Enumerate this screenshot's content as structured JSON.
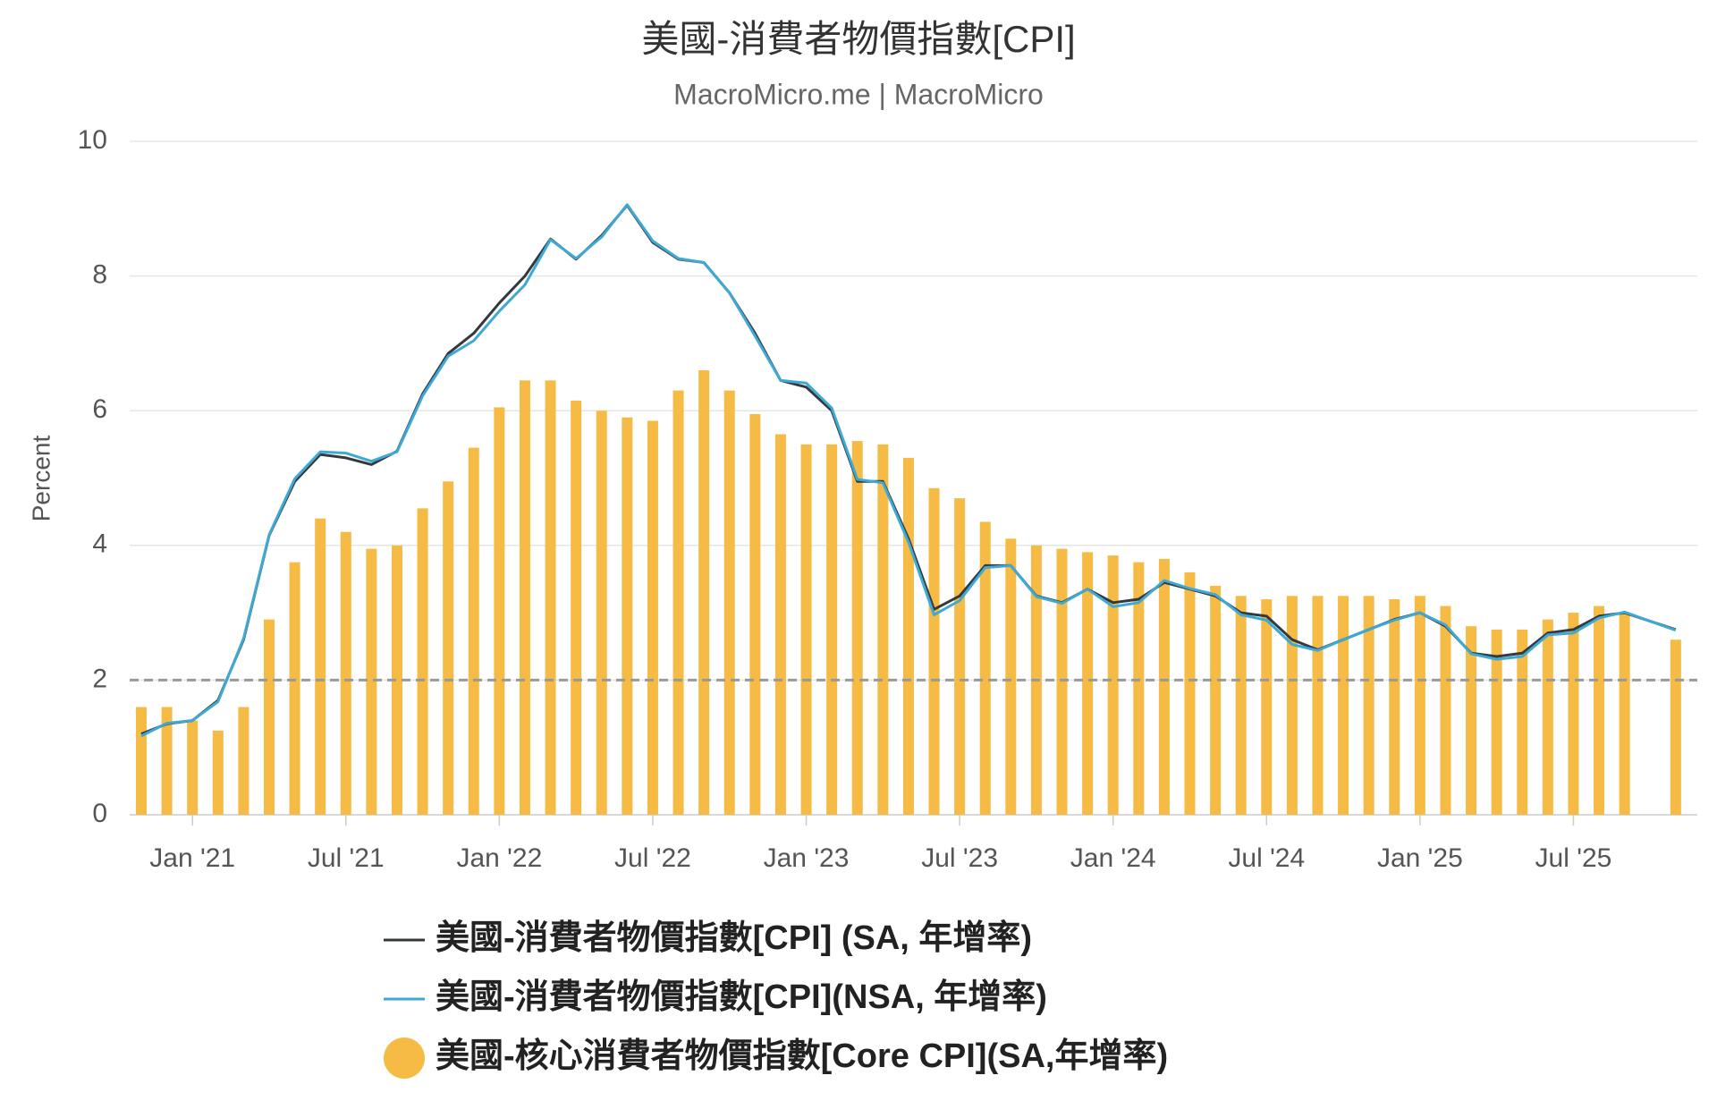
{
  "chart_data": {
    "type": "bar-line",
    "title": "美國-消費者物價指數[CPI]",
    "subtitle": "MacroMicro.me | MacroMicro",
    "y_label": "Percent",
    "x": [
      "2020-11",
      "2020-12",
      "2021-01",
      "2021-02",
      "2021-03",
      "2021-04",
      "2021-05",
      "2021-06",
      "2021-07",
      "2021-08",
      "2021-09",
      "2021-10",
      "2021-11",
      "2021-12",
      "2022-01",
      "2022-02",
      "2022-03",
      "2022-04",
      "2022-05",
      "2022-06",
      "2022-07",
      "2022-08",
      "2022-09",
      "2022-10",
      "2022-11",
      "2022-12",
      "2023-01",
      "2023-02",
      "2023-03",
      "2023-04",
      "2023-05",
      "2023-06",
      "2023-07",
      "2023-08",
      "2023-09",
      "2023-10",
      "2023-11",
      "2023-12",
      "2024-01",
      "2024-02",
      "2024-03",
      "2024-04",
      "2024-05",
      "2024-06",
      "2024-07",
      "2024-08",
      "2024-09",
      "2024-10",
      "2024-11",
      "2024-12",
      "2025-01",
      "2025-02",
      "2025-03",
      "2025-04",
      "2025-05",
      "2025-06",
      "2025-07",
      "2025-08",
      "2025-09",
      "2025-11"
    ],
    "series": [
      {
        "name": "美國-消費者物價指數[CPI] (SA, 年增率)",
        "kind": "line",
        "color": "#333a3f",
        "values": [
          1.2,
          1.35,
          1.4,
          1.7,
          2.6,
          4.15,
          4.95,
          5.35,
          5.3,
          5.2,
          5.4,
          6.25,
          6.85,
          7.15,
          7.6,
          8.0,
          8.55,
          8.25,
          8.6,
          9.05,
          8.5,
          8.25,
          8.2,
          7.75,
          7.15,
          6.45,
          6.35,
          6.0,
          4.95,
          4.95,
          4.1,
          3.05,
          3.25,
          3.7,
          3.7,
          3.25,
          3.15,
          3.35,
          3.15,
          3.2,
          3.45,
          3.35,
          3.25,
          3.0,
          2.95,
          2.6,
          2.45,
          2.6,
          2.75,
          2.9,
          3.0,
          2.8,
          2.4,
          2.35,
          2.4,
          2.7,
          2.75,
          2.95,
          3.0,
          2.75
        ]
      },
      {
        "name": "美國-消費者物價指數[CPI](NSA, 年增率)",
        "kind": "line",
        "color": "#3fa9d5",
        "values": [
          1.17,
          1.36,
          1.4,
          1.68,
          2.62,
          4.16,
          4.99,
          5.39,
          5.37,
          5.25,
          5.39,
          6.22,
          6.81,
          7.04,
          7.48,
          7.87,
          8.54,
          8.26,
          8.58,
          9.06,
          8.52,
          8.26,
          8.2,
          7.75,
          7.11,
          6.45,
          6.41,
          6.04,
          4.98,
          4.93,
          4.05,
          2.97,
          3.18,
          3.67,
          3.7,
          3.24,
          3.14,
          3.35,
          3.09,
          3.15,
          3.48,
          3.36,
          3.27,
          2.97,
          2.89,
          2.53,
          2.44,
          2.6,
          2.75,
          2.89,
          3.0,
          2.82,
          2.39,
          2.31,
          2.35,
          2.67,
          2.7,
          2.92,
          3.01,
          2.74
        ]
      },
      {
        "name": "美國-核心消費者物價指數[Core CPI](SA,年增率)",
        "kind": "bar",
        "color": "#f5bb45",
        "values": [
          1.6,
          1.6,
          1.4,
          1.25,
          1.6,
          2.9,
          3.75,
          4.4,
          4.2,
          3.95,
          4.0,
          4.55,
          4.95,
          5.45,
          6.05,
          6.45,
          6.45,
          6.15,
          6.0,
          5.9,
          5.85,
          6.3,
          6.6,
          6.3,
          5.95,
          5.65,
          5.5,
          5.5,
          5.55,
          5.5,
          5.3,
          4.85,
          4.7,
          4.35,
          4.1,
          4.0,
          3.95,
          3.9,
          3.85,
          3.75,
          3.8,
          3.6,
          3.4,
          3.25,
          3.2,
          3.25,
          3.25,
          3.25,
          3.25,
          3.2,
          3.25,
          3.1,
          2.8,
          2.75,
          2.75,
          2.9,
          3.0,
          3.1,
          3.0,
          2.6
        ]
      }
    ],
    "ylim": [
      0,
      10
    ],
    "yticks": [
      0,
      2,
      4,
      6,
      8,
      10
    ],
    "xticks": [
      {
        "value": "2021-01",
        "label": "Jan '21"
      },
      {
        "value": "2021-07",
        "label": "Jul '21"
      },
      {
        "value": "2022-01",
        "label": "Jan '22"
      },
      {
        "value": "2022-07",
        "label": "Jul '22"
      },
      {
        "value": "2023-01",
        "label": "Jan '23"
      },
      {
        "value": "2023-07",
        "label": "Jul '23"
      },
      {
        "value": "2024-01",
        "label": "Jan '24"
      },
      {
        "value": "2024-07",
        "label": "Jul '24"
      },
      {
        "value": "2025-01",
        "label": "Jan '25"
      },
      {
        "value": "2025-07",
        "label": "Jul '25"
      }
    ],
    "reference_line": 2,
    "grid": true
  }
}
